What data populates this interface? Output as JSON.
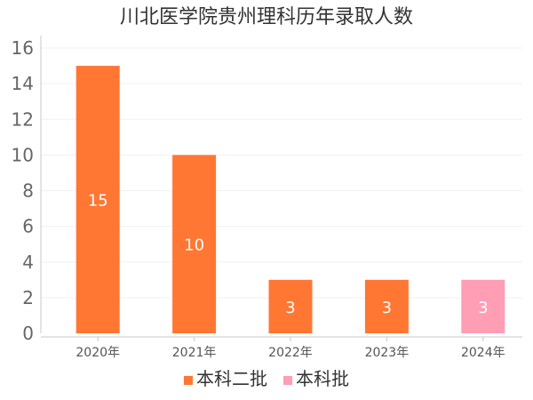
{
  "chart_data": {
    "type": "bar",
    "title": "川北医学院贵州理科历年录取人数",
    "categories": [
      "2020年",
      "2021年",
      "2022年",
      "2023年",
      "2024年"
    ],
    "series": [
      {
        "name": "本科二批",
        "color": "#ff7733",
        "values": [
          15,
          10,
          3,
          3,
          null
        ]
      },
      {
        "name": "本科批",
        "color": "#ff9eb5",
        "values": [
          null,
          null,
          null,
          null,
          3
        ]
      }
    ],
    "y_ticks": [
      "0",
      "2",
      "4",
      "6",
      "8",
      "10",
      "12",
      "14",
      "16"
    ],
    "ylim": [
      0,
      16
    ],
    "grid": true,
    "legend_position": "bottom-center",
    "data_labels": true
  }
}
